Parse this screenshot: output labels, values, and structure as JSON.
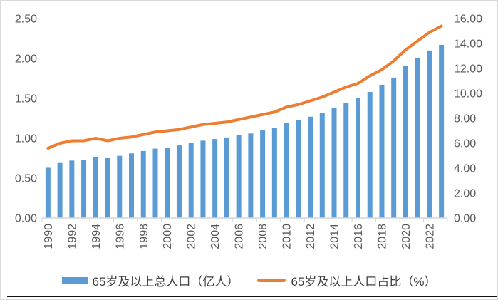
{
  "chart_data": {
    "type": "bar",
    "combo": "bar+line",
    "title": "",
    "grid": false,
    "legend_position": "bottom",
    "x": [
      1990,
      1991,
      1992,
      1993,
      1994,
      1995,
      1996,
      1997,
      1998,
      1999,
      2000,
      2001,
      2002,
      2003,
      2004,
      2005,
      2006,
      2007,
      2008,
      2009,
      2010,
      2011,
      2012,
      2013,
      2014,
      2015,
      2016,
      2017,
      2018,
      2019,
      2020,
      2021,
      2022,
      2023
    ],
    "series": [
      {
        "name": "65岁及以上总人口（亿人）",
        "type": "bar",
        "axis": "left",
        "color": "#5B9BD5",
        "values": [
          0.63,
          0.69,
          0.72,
          0.73,
          0.76,
          0.75,
          0.78,
          0.81,
          0.84,
          0.87,
          0.88,
          0.91,
          0.94,
          0.97,
          0.99,
          1.01,
          1.04,
          1.06,
          1.1,
          1.13,
          1.19,
          1.23,
          1.27,
          1.32,
          1.38,
          1.44,
          1.5,
          1.58,
          1.67,
          1.76,
          1.91,
          2.01,
          2.1,
          2.17
        ]
      },
      {
        "name": "65岁及以上人口占比（%）",
        "type": "line",
        "axis": "right",
        "color": "#ED7D31",
        "values": [
          5.6,
          6.0,
          6.2,
          6.2,
          6.4,
          6.2,
          6.4,
          6.5,
          6.7,
          6.9,
          7.0,
          7.1,
          7.3,
          7.5,
          7.6,
          7.7,
          7.9,
          8.1,
          8.3,
          8.5,
          8.9,
          9.1,
          9.4,
          9.7,
          10.1,
          10.5,
          10.8,
          11.4,
          11.9,
          12.6,
          13.5,
          14.2,
          14.9,
          15.4
        ]
      }
    ],
    "left_axis": {
      "min": 0,
      "max": 2.5,
      "step": 0.5,
      "tick_labels": [
        "0.00",
        "0.50",
        "1.00",
        "1.50",
        "2.00",
        "2.50"
      ]
    },
    "right_axis": {
      "min": 0,
      "max": 16,
      "step": 2,
      "tick_labels": [
        "0.00",
        "2.00",
        "4.00",
        "6.00",
        "8.00",
        "10.00",
        "12.00",
        "14.00",
        "16.00"
      ]
    },
    "x_axis": {
      "tick_interval": 2,
      "tick_labels": [
        "1990",
        "1992",
        "1994",
        "1996",
        "1998",
        "2000",
        "2002",
        "2004",
        "2006",
        "2008",
        "2010",
        "2012",
        "2014",
        "2016",
        "2018",
        "2020",
        "2022"
      ]
    }
  },
  "legend": {
    "items": [
      {
        "label": "65岁及以上总人口（亿人）",
        "swatch": "bar",
        "color": "#5B9BD5"
      },
      {
        "label": "65岁及以上人口占比（%）",
        "swatch": "line",
        "color": "#ED7D31"
      }
    ]
  },
  "colors": {
    "bar": "#5B9BD5",
    "line": "#ED7D31",
    "axis_text": "#595959",
    "axis_line": "#D6D6D6",
    "legend_text": "#3F3F3F",
    "border": "#D9D9D9",
    "bottom_rule": "#111111",
    "background": "#FFFFFF"
  }
}
